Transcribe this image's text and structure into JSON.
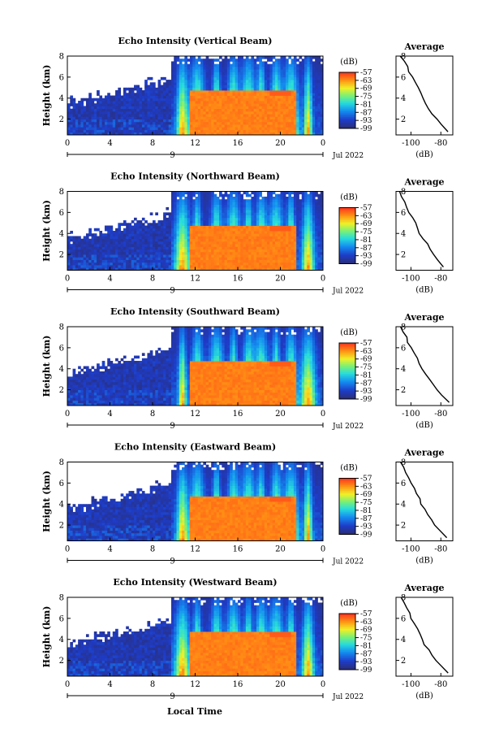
{
  "figure": {
    "xlabel": "Local Time",
    "date_label": "Jul 2022",
    "day_marker": "9",
    "colorbar_unit": "(dB)",
    "avg_title": "Average",
    "avg_xlabel": "(dB)"
  },
  "colors": {
    "background_clear": "#ffffff",
    "low_echo": "#2a2f7a",
    "high_echo": "#ff3a1c"
  },
  "chart_data": [
    {
      "type": "heatmap",
      "title": "Echo Intensity (Vertical Beam)",
      "ylabel": "Height (km)",
      "x_ticks": [
        "0",
        "4",
        "8",
        "12",
        "16",
        "20",
        "0"
      ],
      "y_ticks": [
        "2",
        "4",
        "6",
        "8"
      ],
      "xlim": [
        0,
        24
      ],
      "ylim": [
        0.5,
        8
      ],
      "colorbar_ticks": [
        "-57",
        "-63",
        "-69",
        "-75",
        "-81",
        "-87",
        "-93",
        "-99"
      ],
      "colorbar_range": [
        -99,
        -57
      ],
      "profile": {
        "title": "Average",
        "xlabel": "(dB)",
        "x_ticks": [
          "-100",
          "-80"
        ],
        "y_ticks": [
          "2",
          "4",
          "6",
          "8"
        ],
        "xlim": [
          -110,
          -72
        ],
        "ylim": [
          0.5,
          8
        ],
        "height": [
          0.8,
          1.5,
          2.0,
          2.5,
          3.0,
          3.5,
          4.0,
          4.5,
          5.0,
          5.5,
          6.0,
          6.5,
          7.0,
          7.5,
          8.0
        ],
        "value": [
          -75,
          -80,
          -83,
          -86,
          -88,
          -90,
          -92,
          -93,
          -95,
          -97,
          -99,
          -101,
          -102,
          -104,
          -107
        ]
      }
    },
    {
      "type": "heatmap",
      "title": "Echo Intensity (Northward Beam)",
      "ylabel": "Height (km)",
      "x_ticks": [
        "0",
        "4",
        "8",
        "12",
        "16",
        "20",
        "0"
      ],
      "y_ticks": [
        "2",
        "4",
        "6",
        "8"
      ],
      "xlim": [
        0,
        24
      ],
      "ylim": [
        0.5,
        8
      ],
      "colorbar_ticks": [
        "-57",
        "-63",
        "-69",
        "-75",
        "-81",
        "-87",
        "-93",
        "-99"
      ],
      "colorbar_range": [
        -99,
        -57
      ],
      "profile": {
        "title": "Average",
        "xlabel": "(dB)",
        "x_ticks": [
          "-100",
          "-80"
        ],
        "y_ticks": [
          "2",
          "4",
          "6",
          "8"
        ],
        "xlim": [
          -110,
          -72
        ],
        "ylim": [
          0.5,
          8
        ],
        "height": [
          0.8,
          1.5,
          2.0,
          2.5,
          3.0,
          3.5,
          4.0,
          4.5,
          5.0,
          5.5,
          6.0,
          6.5,
          7.0,
          7.5,
          8.0
        ],
        "value": [
          -78,
          -82,
          -85,
          -87,
          -89,
          -92,
          -94,
          -96,
          -97,
          -99,
          -101,
          -103,
          -104,
          -106,
          -108
        ]
      }
    },
    {
      "type": "heatmap",
      "title": "Echo Intensity (Southward Beam)",
      "ylabel": "Height (km)",
      "x_ticks": [
        "0",
        "4",
        "8",
        "12",
        "16",
        "20",
        "0"
      ],
      "y_ticks": [
        "2",
        "4",
        "6",
        "8"
      ],
      "xlim": [
        0,
        24
      ],
      "ylim": [
        0.5,
        8
      ],
      "colorbar_ticks": [
        "-57",
        "-63",
        "-69",
        "-75",
        "-81",
        "-87",
        "-93",
        "-99"
      ],
      "colorbar_range": [
        -99,
        -57
      ],
      "profile": {
        "title": "Average",
        "xlabel": "(dB)",
        "x_ticks": [
          "-100",
          "-80"
        ],
        "y_ticks": [
          "2",
          "4",
          "6",
          "8"
        ],
        "xlim": [
          -110,
          -72
        ],
        "ylim": [
          0.5,
          8
        ],
        "height": [
          0.8,
          1.5,
          2.0,
          2.5,
          3.0,
          3.5,
          4.0,
          4.5,
          5.0,
          5.5,
          6.0,
          6.5,
          7.0,
          7.5,
          8.0
        ],
        "value": [
          -74,
          -79,
          -82,
          -85,
          -88,
          -90,
          -93,
          -95,
          -96,
          -98,
          -100,
          -102,
          -103,
          -105,
          -107
        ]
      }
    },
    {
      "type": "heatmap",
      "title": "Echo Intensity (Eastward Beam)",
      "ylabel": "Height (km)",
      "x_ticks": [
        "0",
        "4",
        "8",
        "12",
        "16",
        "20",
        "0"
      ],
      "y_ticks": [
        "2",
        "4",
        "6",
        "8"
      ],
      "xlim": [
        0,
        24
      ],
      "ylim": [
        0.5,
        8
      ],
      "colorbar_ticks": [
        "-57",
        "-63",
        "-69",
        "-75",
        "-81",
        "-87",
        "-93",
        "-99"
      ],
      "colorbar_range": [
        -99,
        -57
      ],
      "profile": {
        "title": "Average",
        "xlabel": "(dB)",
        "x_ticks": [
          "-100",
          "-80"
        ],
        "y_ticks": [
          "2",
          "4",
          "6",
          "8"
        ],
        "xlim": [
          -110,
          -72
        ],
        "ylim": [
          0.5,
          8
        ],
        "height": [
          0.8,
          1.5,
          2.0,
          2.5,
          3.0,
          3.5,
          4.0,
          4.5,
          5.0,
          5.5,
          6.0,
          6.5,
          7.0,
          7.5,
          8.0
        ],
        "value": [
          -76,
          -81,
          -84,
          -86,
          -89,
          -91,
          -93,
          -94,
          -96,
          -98,
          -100,
          -102,
          -104,
          -105,
          -107
        ]
      }
    },
    {
      "type": "heatmap",
      "title": "Echo Intensity (Westward Beam)",
      "ylabel": "Height (km)",
      "x_ticks": [
        "0",
        "4",
        "8",
        "12",
        "16",
        "20",
        "0"
      ],
      "y_ticks": [
        "2",
        "4",
        "6",
        "8"
      ],
      "xlim": [
        0,
        24
      ],
      "ylim": [
        0.5,
        8
      ],
      "colorbar_ticks": [
        "-57",
        "-63",
        "-69",
        "-75",
        "-81",
        "-87",
        "-93",
        "-99"
      ],
      "colorbar_range": [
        -99,
        -57
      ],
      "profile": {
        "title": "Average",
        "xlabel": "(dB)",
        "x_ticks": [
          "-100",
          "-80"
        ],
        "y_ticks": [
          "2",
          "4",
          "6",
          "8"
        ],
        "xlim": [
          -110,
          -72
        ],
        "ylim": [
          0.5,
          8
        ],
        "height": [
          0.8,
          1.5,
          2.0,
          2.5,
          3.0,
          3.5,
          4.0,
          4.5,
          5.0,
          5.5,
          6.0,
          6.5,
          7.0,
          7.5,
          8.0
        ],
        "value": [
          -75,
          -80,
          -83,
          -86,
          -88,
          -91,
          -92,
          -94,
          -96,
          -98,
          -100,
          -101,
          -103,
          -105,
          -107
        ]
      }
    }
  ]
}
